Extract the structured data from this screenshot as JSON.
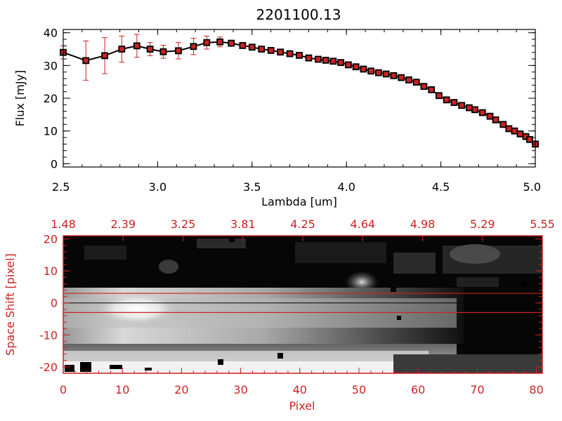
{
  "chart_data": [
    {
      "type": "line",
      "title": "2201100.13",
      "xlabel": "Lambda [um]",
      "ylabel": "Flux [mJy]",
      "xlim": [
        2.5,
        5.0
      ],
      "ylim": [
        -1,
        41
      ],
      "xticks": [
        2.5,
        3.0,
        3.5,
        4.0,
        4.5,
        5.0
      ],
      "xtick_labels": [
        "2.5",
        "3.0",
        "3.5",
        "4.0",
        "4.5",
        "5.0"
      ],
      "yticks": [
        0,
        10,
        20,
        30,
        40
      ],
      "ytick_labels": [
        "0",
        "10",
        "20",
        "30",
        "40"
      ],
      "grid": false,
      "line_color": "#000000",
      "marker_color": "#cc2222",
      "errorbar_color": "#cc2222",
      "series": [
        {
          "name": "Flux",
          "x": [
            2.5,
            2.62,
            2.72,
            2.81,
            2.89,
            2.96,
            3.03,
            3.11,
            3.19,
            3.26,
            3.33,
            3.39,
            3.45,
            3.5,
            3.55,
            3.6,
            3.65,
            3.7,
            3.75,
            3.8,
            3.85,
            3.89,
            3.93,
            3.97,
            4.01,
            4.05,
            4.09,
            4.13,
            4.17,
            4.21,
            4.25,
            4.29,
            4.33,
            4.37,
            4.41,
            4.45,
            4.49,
            4.53,
            4.57,
            4.61,
            4.65,
            4.68,
            4.72,
            4.76,
            4.79,
            4.83,
            4.86,
            4.89,
            4.92,
            4.95,
            4.97,
            5.0
          ],
          "y": [
            34.0,
            31.5,
            33.0,
            35.0,
            36.0,
            35.0,
            34.2,
            34.5,
            35.8,
            37.0,
            37.2,
            36.8,
            36.1,
            35.6,
            35.0,
            34.6,
            34.1,
            33.6,
            33.1,
            32.3,
            31.9,
            31.6,
            31.3,
            30.9,
            30.2,
            29.6,
            28.9,
            28.3,
            27.8,
            27.4,
            26.9,
            26.3,
            25.6,
            24.9,
            23.6,
            22.6,
            20.8,
            19.5,
            18.7,
            17.8,
            17.1,
            16.5,
            15.6,
            14.5,
            13.4,
            12.0,
            10.7,
            10.0,
            9.1,
            8.3,
            7.4,
            6.0
          ],
          "yerr": [
            2.0,
            6.0,
            5.5,
            4.0,
            3.5,
            2.0,
            2.0,
            2.5,
            2.5,
            2.0,
            1.5,
            0.5,
            0.5,
            0.5,
            0.5,
            0.5,
            0.5,
            0.5,
            0.5,
            0.5,
            0.5,
            0.5,
            0.5,
            0.5,
            0.5,
            0.5,
            0.5,
            0.5,
            0.5,
            0.5,
            0.5,
            0.5,
            0.5,
            0.5,
            0.5,
            0.5,
            0.5,
            0.5,
            0.5,
            0.5,
            0.5,
            0.5,
            0.5,
            0.5,
            0.5,
            0.5,
            0.5,
            0.5,
            0.5,
            0.5,
            0.5,
            0.5
          ]
        }
      ]
    },
    {
      "type": "heatmap",
      "title": "",
      "xlabel": "Pixel",
      "ylabel": "Space Shift [pixel]",
      "xlim": [
        0,
        81
      ],
      "ylim": [
        -22,
        21
      ],
      "xticks": [
        0,
        10,
        20,
        30,
        40,
        50,
        60,
        70,
        80
      ],
      "xtick_labels": [
        "0",
        "10",
        "20",
        "30",
        "40",
        "50",
        "60",
        "70",
        "80"
      ],
      "yticks": [
        -20,
        -10,
        0,
        10,
        20
      ],
      "ytick_labels": [
        "-20",
        "-10",
        "0",
        "10",
        "20"
      ],
      "top_axis_label_values": [
        "1.48",
        "2.39",
        "3.25",
        "3.81",
        "4.25",
        "4.64",
        "4.98",
        "5.29",
        "5.55"
      ],
      "extraction_window": [
        -3,
        3
      ],
      "center_line": 0,
      "colormap": "grayscale",
      "axis_color": "#cc2222",
      "window_line_color": "#cc2222",
      "center_line_color": "#000000",
      "description_values": {
        "bright_spectrum_peak_pixel": 11,
        "bright_blob_1": [
          50,
          7
        ],
        "bright_blob_2": [
          18,
          13
        ]
      }
    }
  ]
}
